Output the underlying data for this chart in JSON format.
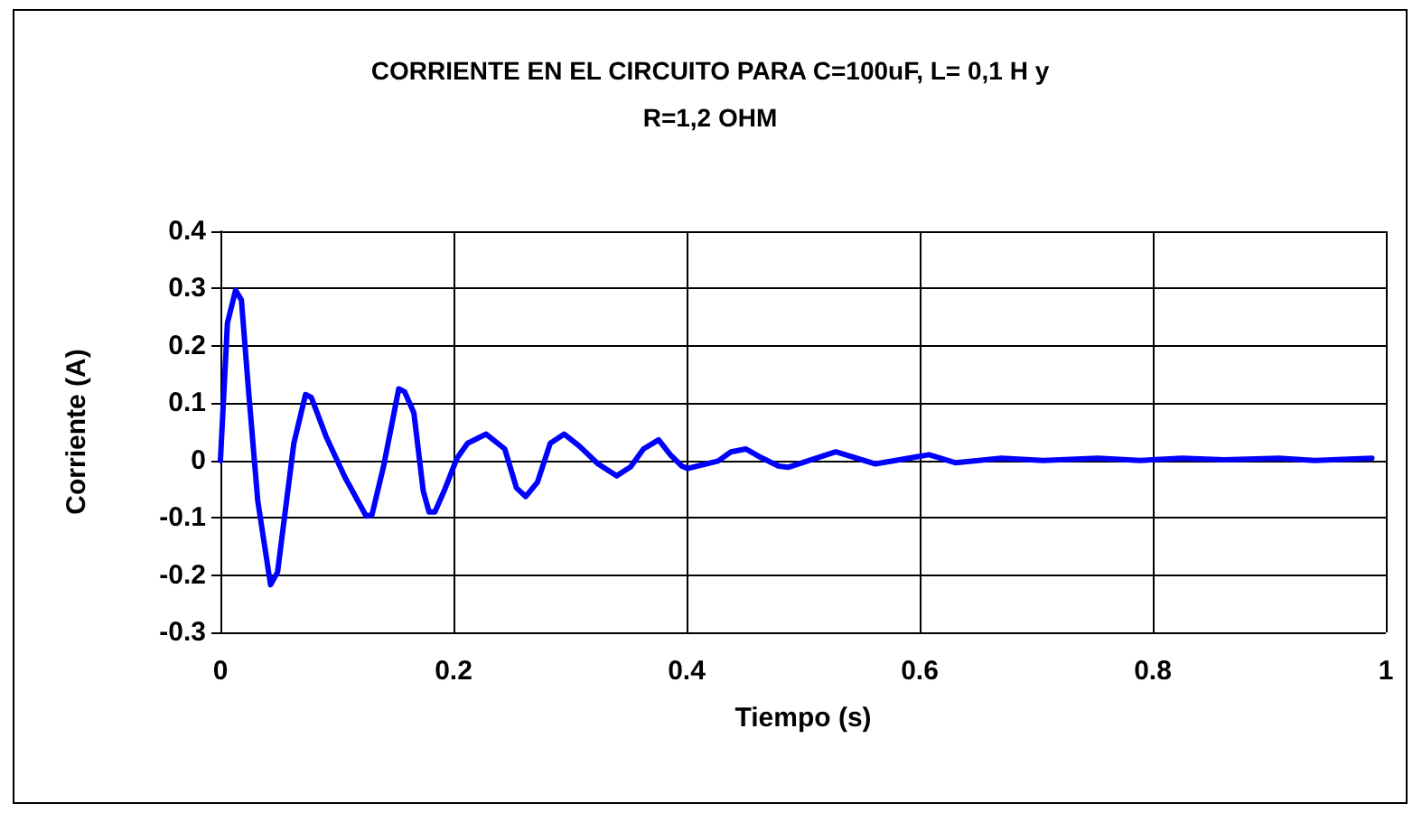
{
  "chart_data": {
    "type": "line",
    "title": "CORRIENTE EN EL CIRCUITO PARA C=100uF, L= 0,1 H y\nR=1,2 OHM",
    "xlabel": "Tiempo (s)",
    "ylabel": "Corriente (A)",
    "xlim": [
      0,
      1
    ],
    "xticks": [
      0,
      0.2,
      0.4,
      0.6,
      0.8,
      1
    ],
    "ylim": [
      -0.3,
      0.4
    ],
    "yticks": [
      -0.3,
      -0.2,
      -0.1,
      0,
      0.1,
      0.2,
      0.3,
      0.4
    ],
    "grid": true,
    "marker": "none",
    "line_style": "solid",
    "series": [
      {
        "color": "#0000ff",
        "x": [
          0,
          0.006,
          0.013,
          0.018,
          0.024,
          0.032,
          0.043,
          0.049,
          0.063,
          0.073,
          0.078,
          0.091,
          0.107,
          0.125,
          0.13,
          0.14,
          0.153,
          0.158,
          0.166,
          0.174,
          0.179,
          0.184,
          0.192,
          0.203,
          0.212,
          0.228,
          0.244,
          0.254,
          0.262,
          0.272,
          0.283,
          0.295,
          0.308,
          0.324,
          0.34,
          0.352,
          0.363,
          0.376,
          0.386,
          0.396,
          0.401,
          0.427,
          0.438,
          0.451,
          0.464,
          0.479,
          0.487,
          0.528,
          0.562,
          0.608,
          0.631,
          0.67,
          0.706,
          0.753,
          0.789,
          0.825,
          0.861,
          0.908,
          0.939,
          0.988
        ],
        "values": [
          0,
          0.24,
          0.297,
          0.28,
          0.125,
          -0.07,
          -0.217,
          -0.195,
          0.03,
          0.115,
          0.11,
          0.04,
          -0.03,
          -0.097,
          -0.095,
          -0.01,
          0.125,
          0.12,
          0.083,
          -0.053,
          -0.09,
          -0.09,
          -0.053,
          0.004,
          0.03,
          0.046,
          0.02,
          -0.048,
          -0.063,
          -0.038,
          0.03,
          0.046,
          0.025,
          -0.006,
          -0.027,
          -0.011,
          0.02,
          0.036,
          0.01,
          -0.01,
          -0.014,
          -0.001,
          0.015,
          0.02,
          0.005,
          -0.01,
          -0.012,
          0.015,
          -0.006,
          0.01,
          -0.004,
          0.004,
          0,
          0.004,
          0,
          0.004,
          0.001,
          0.004,
          0,
          0.004
        ]
      }
    ]
  }
}
